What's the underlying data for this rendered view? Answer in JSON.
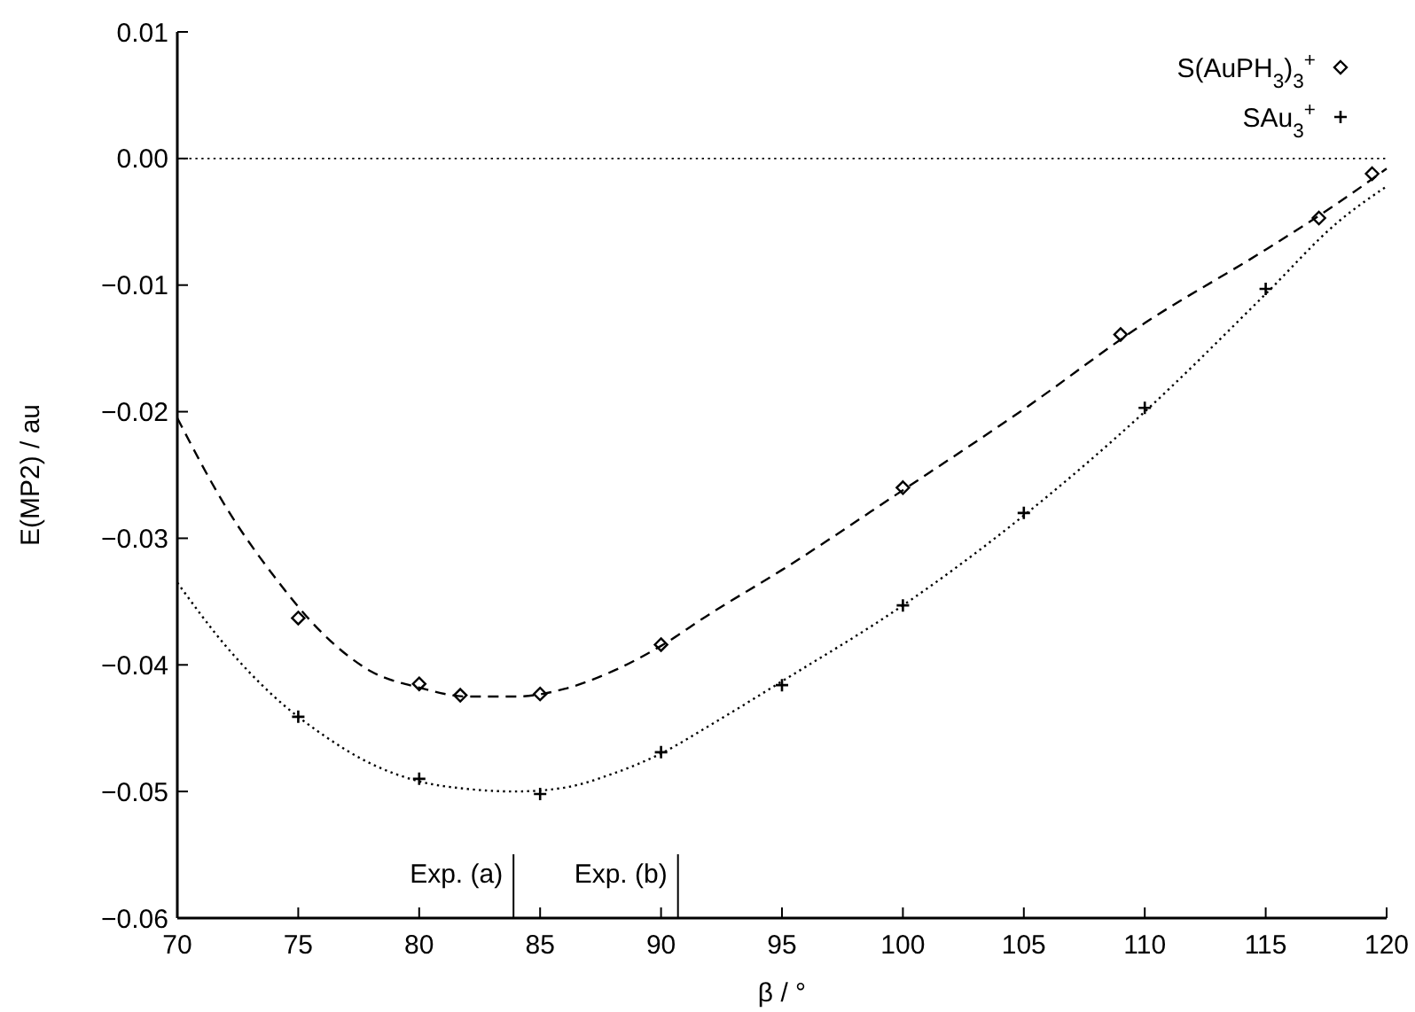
{
  "chart_data": {
    "type": "scatter",
    "xlabel": "β / °",
    "ylabel": "E(MP2) / au",
    "xlim": [
      70,
      120
    ],
    "xticks": [
      70,
      75,
      80,
      85,
      90,
      95,
      100,
      105,
      110,
      115,
      120
    ],
    "ylim": [
      -0.06,
      0.01
    ],
    "yticks": [
      {
        "value": -0.06,
        "label": "−0.06"
      },
      {
        "value": -0.05,
        "label": "−0.05"
      },
      {
        "value": -0.04,
        "label": "−0.04"
      },
      {
        "value": -0.03,
        "label": "−0.03"
      },
      {
        "value": -0.02,
        "label": "−0.02"
      },
      {
        "value": -0.01,
        "label": "−0.01"
      },
      {
        "value": 0,
        "label": "0.00"
      },
      {
        "value": 0.01,
        "label": "0.01"
      }
    ],
    "grid": false,
    "legend": "top right",
    "series": [
      {
        "name": "S(AuPH$_{3}$)$_{3}$$^{+}$",
        "marker": "diamond",
        "color": "#000000",
        "x": [
          75,
          80,
          81.7,
          85,
          90,
          100,
          109,
          117.2,
          119.4
        ],
        "values": [
          -0.0363,
          -0.0415,
          -0.0424,
          -0.0423,
          -0.0384,
          -0.026,
          -0.0139,
          -0.0047,
          -0.0012
        ]
      },
      {
        "name": "SAu$_{3}$$^{+}$",
        "marker": "cross",
        "color": "#000000",
        "x": [
          75,
          80,
          85,
          90,
          95,
          100,
          105,
          110,
          115
        ],
        "values": [
          -0.0441,
          -0.049,
          -0.0502,
          -0.0469,
          -0.0416,
          -0.0353,
          -0.028,
          -0.0197,
          -0.0103
        ]
      },
      {
        "type": "line",
        "line_style": "dashed",
        "marker": "none",
        "color": "#000000",
        "x": [
          70,
          72,
          74,
          76,
          78,
          80,
          82,
          84,
          86,
          88,
          90,
          92,
          95,
          100,
          105,
          110,
          115,
          118,
          120
        ],
        "values": [
          -0.0205,
          -0.0275,
          -0.033,
          -0.0375,
          -0.0405,
          -0.0418,
          -0.0425,
          -0.0425,
          -0.0419,
          -0.0405,
          -0.0385,
          -0.036,
          -0.0325,
          -0.0262,
          -0.0198,
          -0.013,
          -0.0072,
          -0.0035,
          -0.0008
        ]
      },
      {
        "type": "line",
        "line_style": "dotted",
        "marker": "none",
        "color": "#000000",
        "x": [
          70,
          72,
          74,
          76,
          78,
          80,
          82,
          84,
          86,
          88,
          90,
          92,
          95,
          100,
          105,
          110,
          115,
          118,
          120
        ],
        "values": [
          -0.0335,
          -0.0385,
          -0.0425,
          -0.0455,
          -0.0478,
          -0.0492,
          -0.0498,
          -0.05,
          -0.0497,
          -0.0486,
          -0.047,
          -0.0448,
          -0.0413,
          -0.0353,
          -0.0282,
          -0.02,
          -0.0107,
          -0.005,
          -0.0022
        ]
      }
    ],
    "ref_lines": [
      {
        "axis": "y",
        "value": 0,
        "line_style": "dotted"
      },
      {
        "axis": "x",
        "value": 83.9,
        "label": "Exp. (a)"
      },
      {
        "axis": "x",
        "value": 90.7,
        "label": "Exp. (b)"
      }
    ]
  }
}
